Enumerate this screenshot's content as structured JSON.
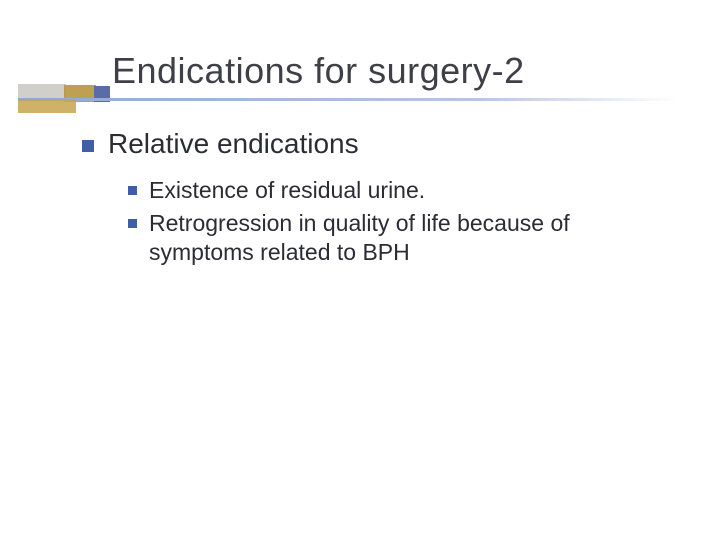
{
  "slide": {
    "title": "Endications for surgery-2",
    "bullet_color": "#3e5fa4",
    "text_color": "#2c2c36",
    "title_color": "#3f3f47",
    "underline_start": "#8fa7d6",
    "deco": {
      "gold_a": "#b8953f",
      "gold_b": "#c4a54e",
      "blue": "#5a6ba7",
      "gray": "#c9c7c0"
    },
    "level1": [
      {
        "text": "Relative endications",
        "children": [
          {
            "text": "Existence of residual urine."
          },
          {
            "text": "Retrogression in quality of life because of symptoms related to BPH"
          }
        ]
      }
    ]
  }
}
